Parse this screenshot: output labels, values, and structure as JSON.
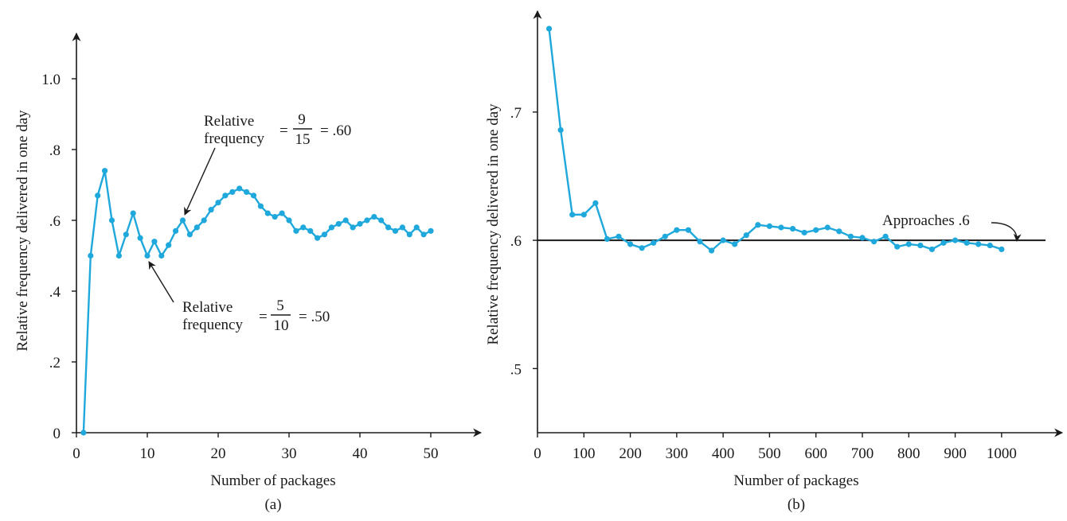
{
  "chart_data": [
    {
      "type": "line",
      "caption": "(a)",
      "xlabel": "Number of packages",
      "ylabel": "Relative frequency delivered in one day",
      "xlim": [
        0,
        50
      ],
      "ylim": [
        0,
        1.0
      ],
      "x_ticks": [
        0,
        10,
        20,
        30,
        40,
        50
      ],
      "x_tick_labels": [
        "0",
        "10",
        "20",
        "30",
        "40",
        "50"
      ],
      "y_ticks": [
        0,
        0.2,
        0.4,
        0.6,
        0.8,
        1.0
      ],
      "y_tick_labels": [
        "0",
        ".2",
        ".4",
        ".6",
        ".8",
        "1.0"
      ],
      "grid": false,
      "series": [
        {
          "color": "#1ea8dc",
          "x": [
            1,
            2,
            3,
            4,
            5,
            6,
            7,
            8,
            9,
            10,
            11,
            12,
            13,
            14,
            15,
            16,
            17,
            18,
            19,
            20,
            21,
            22,
            23,
            24,
            25,
            26,
            27,
            28,
            29,
            30,
            31,
            32,
            33,
            34,
            35,
            36,
            37,
            38,
            39,
            40,
            41,
            42,
            43,
            44,
            45,
            46,
            47,
            48,
            49,
            50
          ],
          "y": [
            0,
            0.5,
            0.67,
            0.74,
            0.6,
            0.5,
            0.56,
            0.62,
            0.55,
            0.5,
            0.54,
            0.5,
            0.53,
            0.57,
            0.6,
            0.56,
            0.58,
            0.6,
            0.63,
            0.65,
            0.67,
            0.68,
            0.69,
            0.68,
            0.67,
            0.64,
            0.62,
            0.61,
            0.62,
            0.6,
            0.57,
            0.58,
            0.57,
            0.55,
            0.56,
            0.58,
            0.59,
            0.6,
            0.58,
            0.59,
            0.6,
            0.61,
            0.6,
            0.58,
            0.57,
            0.58,
            0.56,
            0.58,
            0.56,
            0.57
          ]
        }
      ],
      "annotations": [
        {
          "id": "a1",
          "label_line1": "Relative",
          "label_line2": "frequency",
          "numerator": "9",
          "denominator": "15",
          "result": "= .60",
          "eq": "=",
          "target_x": 15,
          "target_y": 0.6
        },
        {
          "id": "a2",
          "label_line1": "Relative",
          "label_line2": "frequency",
          "numerator": "5",
          "denominator": "10",
          "result": "= .50",
          "eq": "=",
          "target_x": 10,
          "target_y": 0.5
        }
      ]
    },
    {
      "type": "line",
      "caption": "(b)",
      "xlabel": "Number of packages",
      "ylabel": "Relative frequency delivered in one day",
      "xlim": [
        0,
        1050
      ],
      "ylim": [
        0.45,
        0.77
      ],
      "x_ticks": [
        0,
        100,
        200,
        300,
        400,
        500,
        600,
        700,
        800,
        900,
        1000
      ],
      "x_tick_labels": [
        "0",
        "100",
        "200",
        "300",
        "400",
        "500",
        "600",
        "700",
        "800",
        "900",
        "1000"
      ],
      "y_ticks": [
        0.5,
        0.6,
        0.7
      ],
      "y_tick_labels": [
        ".5",
        ".6",
        ".7"
      ],
      "grid": false,
      "reference_line": {
        "y": 0.6
      },
      "series": [
        {
          "color": "#1ea8dc",
          "x": [
            25,
            50,
            75,
            100,
            125,
            150,
            175,
            200,
            225,
            250,
            275,
            300,
            325,
            350,
            375,
            400,
            425,
            450,
            475,
            500,
            525,
            550,
            575,
            600,
            625,
            650,
            675,
            700,
            725,
            750,
            775,
            800,
            825,
            850,
            875,
            900,
            925,
            950,
            975,
            1000
          ],
          "y": [
            0.765,
            0.686,
            0.62,
            0.62,
            0.629,
            0.601,
            0.603,
            0.597,
            0.594,
            0.598,
            0.603,
            0.608,
            0.608,
            0.599,
            0.592,
            0.6,
            0.597,
            0.604,
            0.612,
            0.611,
            0.61,
            0.609,
            0.606,
            0.608,
            0.61,
            0.607,
            0.603,
            0.602,
            0.599,
            0.603,
            0.595,
            0.597,
            0.596,
            0.593,
            0.598,
            0.6,
            0.598,
            0.597,
            0.596,
            0.593
          ]
        }
      ],
      "annotations": [
        {
          "id": "b1",
          "text": "Approaches .6",
          "target_x": 995,
          "target_y": 0.603
        }
      ]
    }
  ]
}
